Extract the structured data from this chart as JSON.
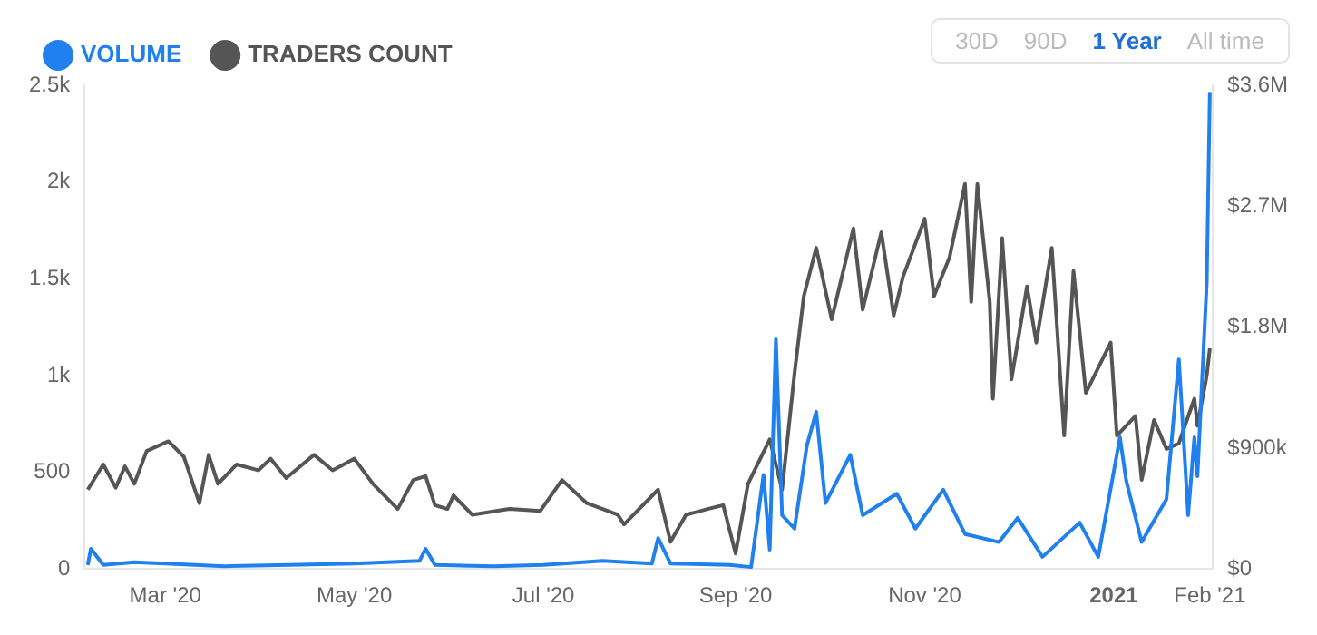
{
  "chart_data": {
    "type": "line",
    "legend": "top left",
    "grid": false,
    "annotations": [
      "30D",
      "90D",
      "1 Year",
      "All time"
    ],
    "xlim": [
      "2020-02-04",
      "2021-02-02"
    ],
    "xticks": [
      {
        "value": "2020-03-01",
        "label": "Mar '20"
      },
      {
        "value": "2020-05-01",
        "label": "May '20"
      },
      {
        "value": "2020-07-01",
        "label": "Jul '20"
      },
      {
        "value": "2020-09-01",
        "label": "Sep '20"
      },
      {
        "value": "2020-11-01",
        "label": "Nov '20"
      },
      {
        "value": "2021-01-01",
        "label": "2021"
      },
      {
        "value": "2021-02-01",
        "label": "Feb '21"
      }
    ],
    "ylim": [
      0,
      2500
    ],
    "yticks": [
      0,
      500,
      {
        "value": 1000,
        "label": "1k"
      },
      {
        "value": 1500,
        "label": "1.5k"
      },
      {
        "value": 2000,
        "label": "2k"
      },
      {
        "value": 2500,
        "label": "2.5k"
      }
    ],
    "y2lim": [
      0,
      3600000
    ],
    "y2ticks": [
      {
        "value": 0,
        "label": "$0"
      },
      {
        "value": 900000,
        "label": "$900k"
      },
      {
        "value": 1800000,
        "label": "$1.8M"
      },
      {
        "value": 2700000,
        "label": "$2.7M"
      },
      {
        "value": 3600000,
        "label": "$3.6M"
      }
    ],
    "series": [
      {
        "name": "VOLUME",
        "color": "#1f80ee",
        "axis": "y2",
        "x": [
          "2020-02-05",
          "2020-02-06",
          "2020-02-10",
          "2020-02-20",
          "2020-03-01",
          "2020-03-20",
          "2020-04-10",
          "2020-05-01",
          "2020-05-22",
          "2020-05-24",
          "2020-05-27",
          "2020-06-15",
          "2020-07-01",
          "2020-07-20",
          "2020-08-05",
          "2020-08-07",
          "2020-08-11",
          "2020-08-30",
          "2020-09-06",
          "2020-09-10",
          "2020-09-12",
          "2020-09-14",
          "2020-09-16",
          "2020-09-20",
          "2020-09-24",
          "2020-09-27",
          "2020-09-30",
          "2020-10-08",
          "2020-10-12",
          "2020-10-23",
          "2020-10-29",
          "2020-11-07",
          "2020-11-14",
          "2020-11-25",
          "2020-12-01",
          "2020-12-09",
          "2020-12-21",
          "2020-12-27",
          "2021-01-03",
          "2021-01-05",
          "2021-01-10",
          "2021-01-18",
          "2021-01-22",
          "2021-01-25",
          "2021-01-27",
          "2021-01-28",
          "2021-01-31",
          "2021-02-01"
        ],
        "values": [
          30000,
          150000,
          30000,
          50000,
          40000,
          20000,
          30000,
          40000,
          60000,
          150000,
          30000,
          20000,
          30000,
          60000,
          40000,
          230000,
          40000,
          30000,
          14000,
          700000,
          144000,
          1710000,
          400000,
          300000,
          920000,
          1170000,
          490000,
          850000,
          400000,
          560000,
          300000,
          590000,
          260000,
          200000,
          380000,
          90000,
          345000,
          90000,
          980000,
          660000,
          200000,
          520000,
          1560000,
          400000,
          980000,
          690000,
          2130000,
          3550000
        ]
      },
      {
        "name": "TRADERS COUNT",
        "color": "#555555",
        "x": [
          "2020-02-05",
          "2020-02-10",
          "2020-02-14",
          "2020-02-17",
          "2020-02-20",
          "2020-02-24",
          "2020-03-02",
          "2020-03-07",
          "2020-03-12",
          "2020-03-15",
          "2020-03-18",
          "2020-03-24",
          "2020-03-31",
          "2020-04-04",
          "2020-04-09",
          "2020-04-18",
          "2020-04-24",
          "2020-05-01",
          "2020-05-07",
          "2020-05-15",
          "2020-05-20",
          "2020-05-24",
          "2020-05-27",
          "2020-05-31",
          "2020-06-02",
          "2020-06-08",
          "2020-06-20",
          "2020-06-30",
          "2020-07-07",
          "2020-07-15",
          "2020-07-25",
          "2020-07-27",
          "2020-08-07",
          "2020-08-11",
          "2020-08-16",
          "2020-08-23",
          "2020-08-28",
          "2020-09-01",
          "2020-09-05",
          "2020-09-12",
          "2020-09-16",
          "2020-09-20",
          "2020-09-23",
          "2020-09-27",
          "2020-10-02",
          "2020-10-09",
          "2020-10-12",
          "2020-10-18",
          "2020-10-22",
          "2020-10-25",
          "2020-11-01",
          "2020-11-04",
          "2020-11-09",
          "2020-11-14",
          "2020-11-16",
          "2020-11-18",
          "2020-11-22",
          "2020-11-23",
          "2020-11-26",
          "2020-11-29",
          "2020-12-04",
          "2020-12-07",
          "2020-12-12",
          "2020-12-16",
          "2020-12-19",
          "2020-12-23",
          "2020-12-31",
          "2021-01-02",
          "2021-01-08",
          "2021-01-10",
          "2021-01-14",
          "2021-01-18",
          "2021-01-22",
          "2021-01-27",
          "2021-01-28",
          "2021-01-31",
          "2021-02-01"
        ],
        "values": [
          410,
          540,
          420,
          530,
          440,
          610,
          660,
          580,
          340,
          590,
          440,
          540,
          510,
          570,
          470,
          590,
          510,
          570,
          440,
          310,
          460,
          480,
          330,
          310,
          380,
          280,
          310,
          300,
          460,
          340,
          280,
          230,
          410,
          140,
          280,
          310,
          330,
          80,
          440,
          670,
          410,
          1010,
          1410,
          1660,
          1290,
          1760,
          1340,
          1740,
          1310,
          1510,
          1810,
          1410,
          1610,
          1990,
          1380,
          1990,
          1380,
          880,
          1710,
          980,
          1460,
          1170,
          1660,
          690,
          1540,
          910,
          1170,
          690,
          790,
          460,
          770,
          620,
          650,
          880,
          740,
          1000,
          1140
        ]
      }
    ]
  }
}
